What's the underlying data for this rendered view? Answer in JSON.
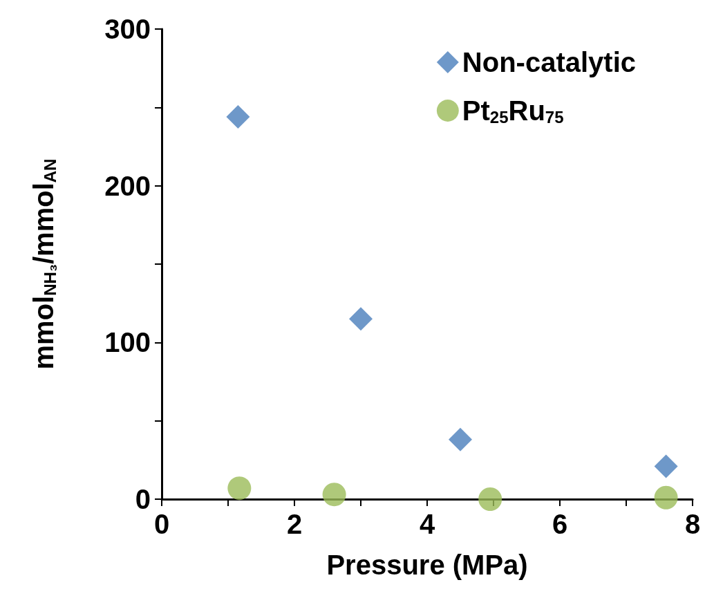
{
  "chart_data": {
    "type": "scatter",
    "xlabel": "Pressure (MPa)",
    "ylabel": "mmol$_{NH₃}$/mmol$_{AN}$",
    "series": [
      {
        "name": "Non-catalytic",
        "color": "#4a7ebb",
        "marker": "diamond",
        "x": [
          1.15,
          3.0,
          4.5,
          7.6
        ],
        "values": [
          244,
          115,
          38,
          21
        ]
      },
      {
        "name": "Pt$_{25}$Ru$_{75}$",
        "color": "#9bbb59",
        "marker": "circle",
        "x": [
          1.17,
          2.6,
          4.95,
          7.6
        ],
        "values": [
          7,
          3,
          0,
          1
        ]
      }
    ],
    "xlim": [
      0,
      8
    ],
    "xticks": [
      0,
      {
        "value": 1,
        "label": null
      },
      2,
      {
        "value": 3,
        "label": null
      },
      4,
      {
        "value": 5,
        "label": null
      },
      6,
      {
        "value": 7,
        "label": null
      },
      8
    ],
    "ylim": [
      0,
      300
    ],
    "yticks": [
      0,
      {
        "value": 50,
        "label": null
      },
      100,
      {
        "value": 150,
        "label": null
      },
      200,
      {
        "value": 250,
        "label": null
      },
      300
    ],
    "grid": false,
    "legend": "top right"
  }
}
